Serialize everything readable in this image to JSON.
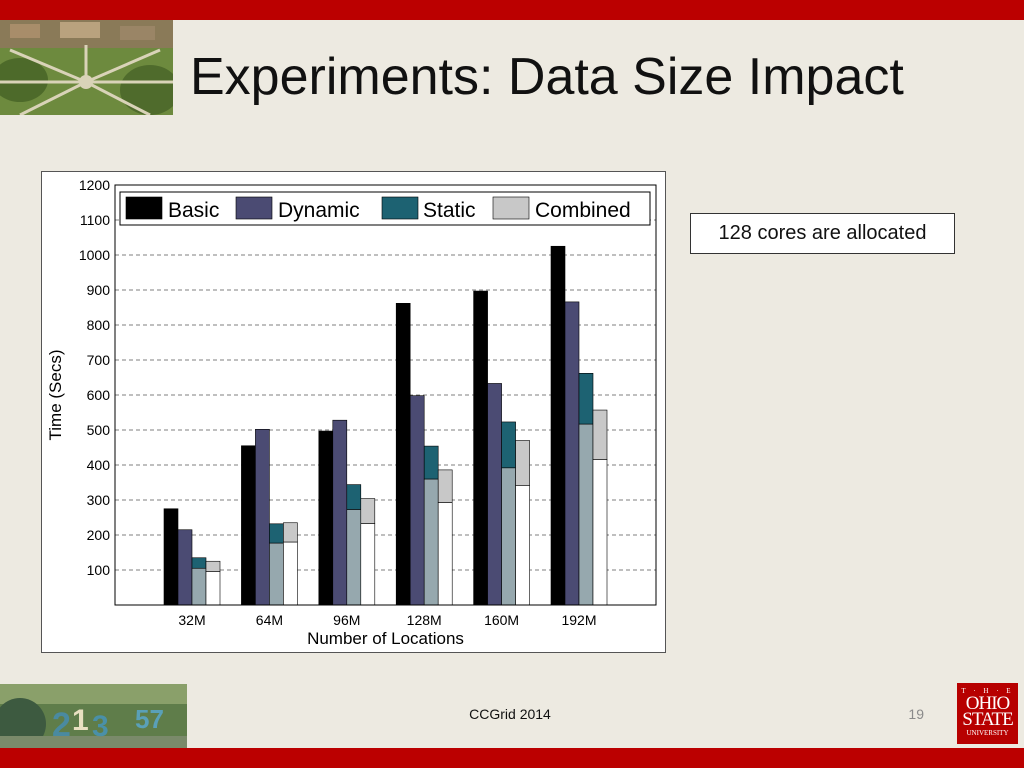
{
  "slide": {
    "title": "Experiments: Data Size Impact",
    "note": "128 cores are allocated",
    "footer": "CCGrid 2014",
    "page_number": "19"
  },
  "logo": {
    "line1": "T · H · E",
    "line2": "OHIO",
    "line3": "STATE",
    "line4": "UNIVERSITY"
  },
  "colors": {
    "accent_red": "#bb0000",
    "background": "#edeae1",
    "basic": "#000000",
    "dynamic": "#4b4b73",
    "static": "#1d6272",
    "combined": "#c8c8c8",
    "static_lower": "#96a8ae",
    "combined_lower": "#ffffff"
  },
  "chart_data": {
    "type": "bar",
    "categories": [
      "32M",
      "64M",
      "96M",
      "128M",
      "160M",
      "192M"
    ],
    "series": [
      {
        "name": "Basic",
        "values": [
          275,
          455,
          497,
          862,
          897,
          1025
        ]
      },
      {
        "name": "Dynamic",
        "values": [
          215,
          502,
          528,
          598,
          633,
          866
        ]
      },
      {
        "name": "Static",
        "values": [
          135,
          232,
          344,
          454,
          523,
          662
        ]
      },
      {
        "name": "Combined",
        "values": [
          125,
          235,
          304,
          386,
          470,
          557
        ]
      }
    ],
    "stack_splits": {
      "Static": [
        105,
        177,
        273,
        360,
        392,
        517
      ],
      "Combined": [
        96,
        180,
        233,
        293,
        341,
        416
      ]
    },
    "xlabel": "Number of Locations",
    "ylabel": "Time (Secs)",
    "ylim": [
      0,
      1200
    ],
    "yticks": [
      100,
      200,
      300,
      400,
      500,
      600,
      700,
      800,
      900,
      1000,
      1100,
      1200
    ],
    "grid": "horizontal dashed",
    "legend_position": "top, inside plot"
  }
}
